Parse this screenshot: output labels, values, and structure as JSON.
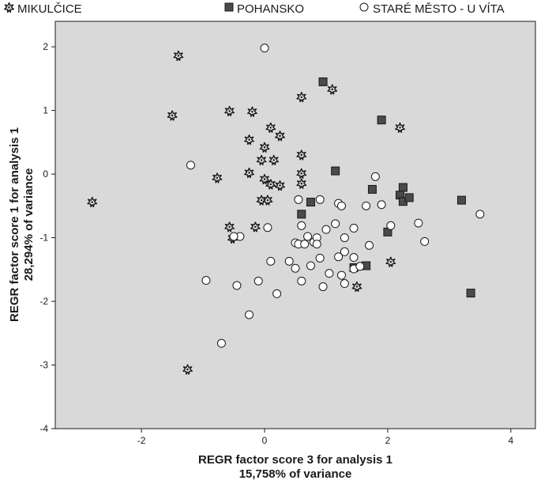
{
  "chart_data": {
    "type": "scatter",
    "xlabel": "REGR factor score   3 for analysis 1",
    "xlabel_sub": "15,758% of variance",
    "ylabel": "REGR factor score   1 for analysis 1",
    "ylabel_sub": "28,294% of variance",
    "xlim": [
      -3.4,
      4.4
    ],
    "ylim": [
      -4,
      2.4
    ],
    "xticks": [
      -2,
      0,
      2,
      4
    ],
    "xtick_labels": [
      "-2",
      "0",
      "2",
      "4"
    ],
    "yticks": [
      2,
      1,
      0,
      -1,
      -2,
      -3,
      -4
    ],
    "ytick_labels": [
      "2",
      "1",
      "0",
      "-1",
      "-2",
      "-3",
      "-4"
    ],
    "grid": false,
    "legend_position": "top",
    "background": "#d9d9d9",
    "series": [
      {
        "name": "MIKULČICE",
        "marker": "star",
        "color": "#2b2b2b",
        "points": [
          [
            -1.4,
            1.86
          ],
          [
            -1.5,
            0.92
          ],
          [
            -2.8,
            -0.44
          ],
          [
            -0.57,
            0.99
          ],
          [
            -0.2,
            0.98
          ],
          [
            0.1,
            0.73
          ],
          [
            -0.25,
            0.54
          ],
          [
            0.25,
            0.6
          ],
          [
            0.0,
            0.42
          ],
          [
            -0.05,
            0.22
          ],
          [
            0.15,
            0.22
          ],
          [
            0.6,
            0.3
          ],
          [
            1.1,
            1.33
          ],
          [
            0.6,
            1.21
          ],
          [
            2.2,
            0.73
          ],
          [
            -0.77,
            -0.06
          ],
          [
            -0.25,
            0.02
          ],
          [
            0.0,
            -0.08
          ],
          [
            0.1,
            -0.16
          ],
          [
            0.25,
            -0.18
          ],
          [
            0.6,
            -0.15
          ],
          [
            0.6,
            0.01
          ],
          [
            -0.05,
            -0.41
          ],
          [
            0.05,
            -0.41
          ],
          [
            -0.57,
            -0.83
          ],
          [
            -0.15,
            -0.83
          ],
          [
            -0.52,
            -1.01
          ],
          [
            2.05,
            -1.38
          ],
          [
            1.5,
            -1.77
          ],
          [
            -1.25,
            -3.07
          ]
        ]
      },
      {
        "name": "POHANSKO",
        "marker": "square",
        "color": "#4a4a4a",
        "points": [
          [
            0.95,
            1.45
          ],
          [
            1.9,
            0.85
          ],
          [
            1.15,
            0.05
          ],
          [
            1.75,
            -0.24
          ],
          [
            2.25,
            -0.21
          ],
          [
            2.2,
            -0.33
          ],
          [
            2.25,
            -0.43
          ],
          [
            2.35,
            -0.37
          ],
          [
            3.2,
            -0.41
          ],
          [
            0.75,
            -0.44
          ],
          [
            0.6,
            -0.63
          ],
          [
            2.0,
            -0.91
          ],
          [
            1.65,
            -1.44
          ],
          [
            1.45,
            -1.47
          ],
          [
            3.35,
            -1.87
          ]
        ]
      },
      {
        "name": "STARÉ MĚSTO - U VÍTA",
        "marker": "circle",
        "color": "#ffffff",
        "points": [
          [
            0.0,
            1.98
          ],
          [
            -1.2,
            0.14
          ],
          [
            1.8,
            -0.04
          ],
          [
            0.55,
            -0.4
          ],
          [
            0.9,
            -0.4
          ],
          [
            1.2,
            -0.46
          ],
          [
            1.25,
            -0.5
          ],
          [
            1.65,
            -0.5
          ],
          [
            1.9,
            -0.48
          ],
          [
            0.6,
            -0.81
          ],
          [
            1.15,
            -0.78
          ],
          [
            2.05,
            -0.81
          ],
          [
            2.5,
            -0.77
          ],
          [
            3.5,
            -0.63
          ],
          [
            0.05,
            -0.84
          ],
          [
            0.7,
            -0.98
          ],
          [
            0.8,
            -1.07
          ],
          [
            0.85,
            -1.0
          ],
          [
            1.0,
            -0.87
          ],
          [
            1.45,
            -0.85
          ],
          [
            0.5,
            -1.08
          ],
          [
            0.55,
            -1.1
          ],
          [
            0.65,
            -1.1
          ],
          [
            0.85,
            -1.1
          ],
          [
            1.3,
            -1.0
          ],
          [
            1.7,
            -1.12
          ],
          [
            2.6,
            -1.06
          ],
          [
            -0.4,
            -0.98
          ],
          [
            -0.5,
            -0.98
          ],
          [
            0.1,
            -1.37
          ],
          [
            0.4,
            -1.37
          ],
          [
            0.75,
            -1.44
          ],
          [
            0.9,
            -1.32
          ],
          [
            1.3,
            -1.22
          ],
          [
            1.45,
            -1.31
          ],
          [
            0.5,
            -1.48
          ],
          [
            1.05,
            -1.56
          ],
          [
            1.25,
            -1.59
          ],
          [
            1.45,
            -1.49
          ],
          [
            1.55,
            -1.45
          ],
          [
            -0.95,
            -1.67
          ],
          [
            -0.45,
            -1.75
          ],
          [
            -0.1,
            -1.68
          ],
          [
            0.6,
            -1.68
          ],
          [
            0.95,
            -1.77
          ],
          [
            1.3,
            -1.72
          ],
          [
            0.2,
            -1.88
          ],
          [
            -0.25,
            -2.21
          ],
          [
            -0.7,
            -2.66
          ],
          [
            1.2,
            -1.3
          ]
        ]
      }
    ]
  }
}
